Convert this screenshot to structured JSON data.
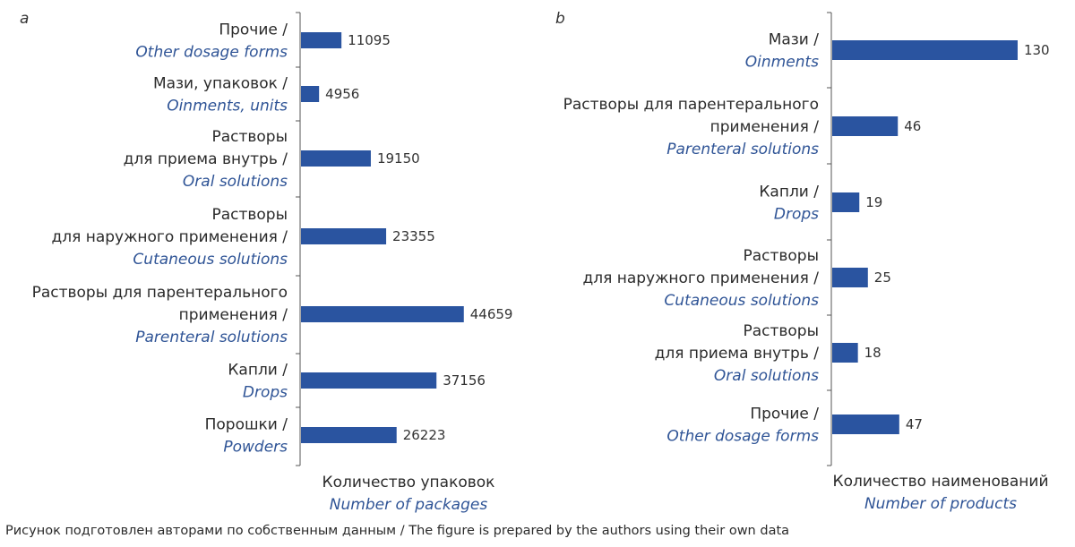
{
  "caption": "Рисунок подготовлен авторами по собственным данным / The figure is prepared by the authors using their own data",
  "colors": {
    "bar": "#2a54a0",
    "english_text": "#2f5496"
  },
  "chart_data": [
    {
      "type": "bar",
      "orientation": "horizontal",
      "panel_label": "a",
      "xlabel": "Количество упаковок",
      "xlabel_en": "Number of packages",
      "categories": [
        {
          "lines": [
            "Прочие /"
          ],
          "en": "Other dosage forms"
        },
        {
          "lines": [
            "Мази, упаковок /"
          ],
          "en": "Oinments, units"
        },
        {
          "lines": [
            "Растворы",
            "для приема внутрь /"
          ],
          "en": "Oral solutions"
        },
        {
          "lines": [
            "Растворы",
            "для наружного применения /"
          ],
          "en": "Cutaneous solutions"
        },
        {
          "lines": [
            "Растворы для парентерального",
            "применения /"
          ],
          "en": "Parenteral solutions"
        },
        {
          "lines": [
            "Капли /"
          ],
          "en": "Drops"
        },
        {
          "lines": [
            "Порошки /"
          ],
          "en": "Powders"
        }
      ],
      "values": [
        11095,
        4956,
        19150,
        23355,
        44659,
        37156,
        26223
      ],
      "xlim": [
        0,
        50000
      ]
    },
    {
      "type": "bar",
      "orientation": "horizontal",
      "panel_label": "b",
      "xlabel": "Количество наименований",
      "xlabel_en": "Number of products",
      "categories": [
        {
          "lines": [
            "Мази /"
          ],
          "en": "Oinments"
        },
        {
          "lines": [
            "Растворы для парентерального",
            "применения /"
          ],
          "en": "Parenteral solutions"
        },
        {
          "lines": [
            "Капли /"
          ],
          "en": "Drops"
        },
        {
          "lines": [
            "Растворы",
            "для наружного применения /"
          ],
          "en": "Cutaneous solutions"
        },
        {
          "lines": [
            "Растворы",
            "для приема внутрь /"
          ],
          "en": "Oral solutions"
        },
        {
          "lines": [
            "Прочие /"
          ],
          "en": "Other dosage forms"
        }
      ],
      "values": [
        130,
        46,
        19,
        25,
        18,
        47
      ],
      "xlim": [
        0,
        145
      ]
    }
  ]
}
